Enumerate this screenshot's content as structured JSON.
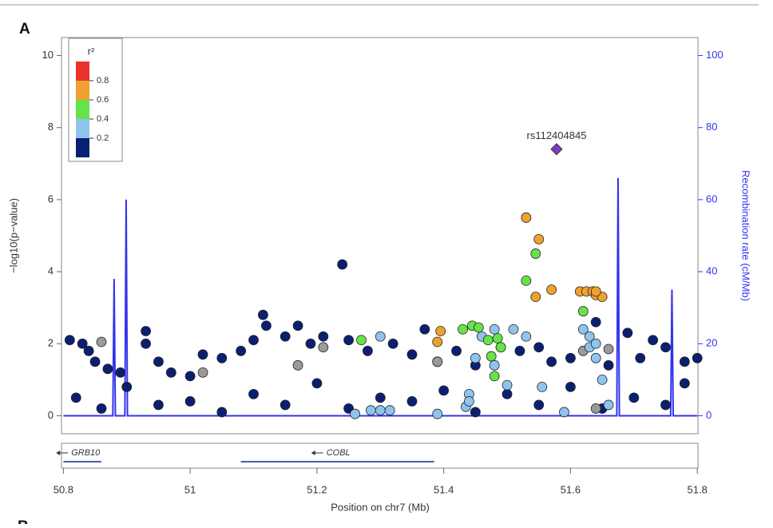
{
  "chart_data": {
    "type": "scatter",
    "panel_label": "A",
    "next_panel_label": "B",
    "xlabel": "Position on chr7 (Mb)",
    "ylabel": "−log10(p−value)",
    "y2label": "Recombination rate (cM/Mb)",
    "xlim": [
      50.797,
      51.801
    ],
    "xticks": [
      50.8,
      51,
      51.2,
      51.4,
      51.6,
      51.8
    ],
    "ylim": [
      -0.5,
      10.5
    ],
    "yticks": [
      0,
      2,
      4,
      6,
      8,
      10
    ],
    "y2lim": [
      -5,
      105
    ],
    "y2ticks": [
      0,
      20,
      40,
      60,
      80,
      100
    ],
    "legend_title": "r²",
    "r2_scale": {
      "colors": [
        "#0b1f72",
        "#8ec4ee",
        "#66e34a",
        "#f0a030",
        "#e8322a"
      ],
      "ticks": [
        0.2,
        0.4,
        0.6,
        0.8
      ]
    },
    "series": [
      {
        "color": "#0b1f72",
        "marker": "circle",
        "x": [
          50.81,
          50.83,
          50.84,
          50.85,
          50.87,
          50.89,
          50.93,
          50.93,
          50.95,
          50.97,
          51.0,
          51.02,
          51.05,
          51.08,
          51.1,
          51.115,
          51.12,
          51.15,
          51.17,
          51.19,
          51.21,
          51.24,
          51.25,
          51.28,
          51.32,
          51.35,
          51.37,
          51.39,
          51.42,
          51.45,
          51.49,
          51.52,
          51.55,
          51.57,
          51.6,
          51.64,
          51.66,
          51.69,
          51.71,
          51.73,
          51.75,
          51.78,
          51.8,
          50.82,
          50.9,
          51.0,
          51.1,
          51.2,
          51.3,
          51.4,
          51.5,
          51.6,
          51.7,
          51.78,
          50.86,
          50.95,
          51.05,
          51.15,
          51.25,
          51.35,
          51.45,
          51.55,
          51.65,
          51.75
        ],
        "values": [
          2.1,
          2.0,
          1.8,
          1.5,
          1.3,
          1.2,
          2.35,
          2.0,
          1.5,
          1.2,
          1.1,
          1.7,
          1.6,
          1.8,
          2.1,
          2.8,
          2.5,
          2.2,
          2.5,
          2.0,
          2.2,
          4.2,
          2.1,
          1.8,
          2.0,
          1.7,
          2.4,
          1.5,
          1.8,
          1.4,
          1.9,
          1.8,
          1.9,
          1.5,
          1.6,
          2.6,
          1.4,
          2.3,
          1.6,
          2.1,
          1.9,
          1.5,
          1.6,
          0.5,
          0.8,
          0.4,
          0.6,
          0.9,
          0.5,
          0.7,
          0.6,
          0.8,
          0.5,
          0.9,
          0.2,
          0.3,
          0.1,
          0.3,
          0.2,
          0.4,
          0.1,
          0.3,
          0.2,
          0.3
        ]
      },
      {
        "color": "#9a9a9a",
        "marker": "circle",
        "x": [
          50.86,
          51.02,
          51.17,
          51.21,
          51.39,
          51.62,
          51.66,
          51.64
        ],
        "values": [
          2.05,
          1.2,
          1.4,
          1.9,
          1.5,
          1.8,
          1.85,
          0.2
        ]
      },
      {
        "color": "#8ec4ee",
        "marker": "circle",
        "x": [
          51.26,
          51.285,
          51.3,
          51.315,
          51.3,
          51.39,
          51.44,
          51.435,
          51.44,
          51.45,
          51.46,
          51.48,
          51.48,
          51.51,
          51.5,
          51.53,
          51.555,
          51.59,
          51.62,
          51.63,
          51.63,
          51.64,
          51.64,
          51.65,
          51.66
        ],
        "values": [
          0.05,
          0.15,
          0.15,
          0.15,
          2.2,
          0.05,
          0.6,
          0.25,
          0.4,
          1.6,
          2.2,
          2.4,
          1.4,
          2.4,
          0.85,
          2.2,
          0.8,
          0.1,
          2.4,
          2.2,
          1.9,
          2.0,
          1.6,
          1.0,
          0.3
        ]
      },
      {
        "color": "#66e34a",
        "marker": "circle",
        "x": [
          51.27,
          51.43,
          51.445,
          51.455,
          51.47,
          51.475,
          51.48,
          51.485,
          51.49,
          51.53,
          51.545,
          51.62
        ],
        "values": [
          2.1,
          2.4,
          2.5,
          2.45,
          2.1,
          1.65,
          1.1,
          2.15,
          1.9,
          3.75,
          4.5,
          2.9
        ]
      },
      {
        "color": "#f0a030",
        "marker": "circle",
        "x": [
          51.395,
          51.39,
          51.53,
          51.55,
          51.545,
          51.57,
          51.615,
          51.625,
          51.635,
          51.64,
          51.65,
          51.64
        ],
        "values": [
          2.35,
          2.05,
          5.5,
          4.9,
          3.3,
          3.5,
          3.45,
          3.45,
          3.45,
          3.35,
          3.3,
          3.45
        ]
      },
      {
        "color": "#7b3fbf",
        "marker": "diamond",
        "x": [
          51.578
        ],
        "values": [
          7.4
        ]
      },
      {
        "color": "#3333ee",
        "marker": "line",
        "axis": "y2",
        "x": [
          50.8,
          50.878,
          50.88,
          50.882,
          50.897,
          50.899,
          50.901,
          51.673,
          51.675,
          51.677,
          51.758,
          51.76,
          51.762,
          51.8
        ],
        "values": [
          0,
          0,
          38,
          0,
          0,
          60,
          0,
          0,
          66,
          0,
          0,
          35,
          0,
          0
        ]
      }
    ],
    "annotations": [
      {
        "text": "rs112404845",
        "x": 51.578,
        "y": 7.4
      }
    ],
    "genes": [
      {
        "name": "GRB10",
        "start": 50.8,
        "end": 50.86
      },
      {
        "name": "COBL",
        "start": 51.08,
        "end": 51.385
      }
    ]
  }
}
